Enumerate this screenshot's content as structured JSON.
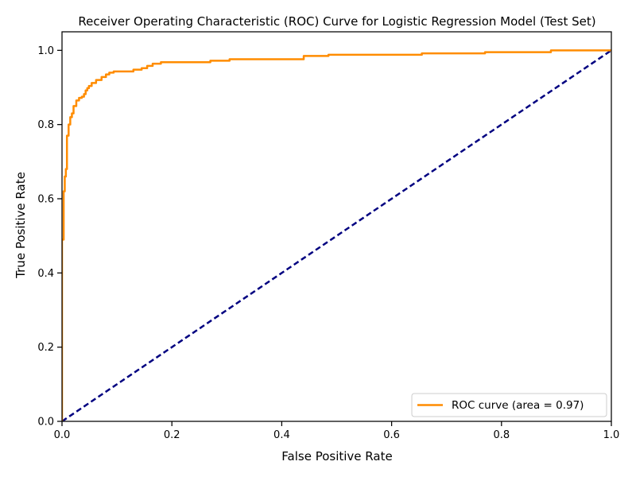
{
  "chart_data": {
    "type": "line",
    "title": "Receiver Operating Characteristic (ROC) Curve for Logistic Regression Model (Test Set)",
    "xlabel": "False Positive Rate",
    "ylabel": "True Positive Rate",
    "xlim": [
      0,
      1
    ],
    "ylim": [
      0,
      1.05
    ],
    "x_ticks": [
      0.0,
      0.2,
      0.4,
      0.6,
      0.8,
      1.0
    ],
    "x_tick_labels": [
      "0.0",
      "0.2",
      "0.4",
      "0.6",
      "0.8",
      "1.0"
    ],
    "y_ticks": [
      0.0,
      0.2,
      0.4,
      0.6,
      0.8,
      1.0
    ],
    "y_tick_labels": [
      "0.0",
      "0.2",
      "0.4",
      "0.6",
      "0.8",
      "1.0"
    ],
    "grid": false,
    "legend_position": "lower-right",
    "series": [
      {
        "name": "ROC curve (area = 0.97)",
        "color": "#ff8c00",
        "style": "solid",
        "x": [
          0.0,
          0.0,
          0.003,
          0.003,
          0.005,
          0.005,
          0.007,
          0.007,
          0.009,
          0.009,
          0.012,
          0.012,
          0.015,
          0.015,
          0.018,
          0.018,
          0.021,
          0.021,
          0.026,
          0.026,
          0.031,
          0.031,
          0.036,
          0.036,
          0.04,
          0.04,
          0.043,
          0.043,
          0.046,
          0.046,
          0.049,
          0.049,
          0.054,
          0.054,
          0.062,
          0.062,
          0.072,
          0.072,
          0.08,
          0.08,
          0.086,
          0.086,
          0.094,
          0.094,
          0.13,
          0.13,
          0.145,
          0.145,
          0.155,
          0.155,
          0.165,
          0.165,
          0.18,
          0.18,
          0.27,
          0.27,
          0.305,
          0.305,
          0.44,
          0.44,
          0.485,
          0.485,
          0.655,
          0.655,
          0.77,
          0.77,
          0.89,
          0.89,
          1.0
        ],
        "y": [
          0.0,
          0.49,
          0.49,
          0.62,
          0.62,
          0.66,
          0.66,
          0.68,
          0.68,
          0.77,
          0.77,
          0.8,
          0.8,
          0.82,
          0.82,
          0.83,
          0.83,
          0.85,
          0.85,
          0.865,
          0.865,
          0.872,
          0.872,
          0.875,
          0.875,
          0.882,
          0.882,
          0.892,
          0.892,
          0.898,
          0.898,
          0.904,
          0.904,
          0.912,
          0.912,
          0.92,
          0.92,
          0.928,
          0.928,
          0.935,
          0.935,
          0.94,
          0.94,
          0.943,
          0.943,
          0.948,
          0.948,
          0.952,
          0.952,
          0.958,
          0.958,
          0.964,
          0.964,
          0.968,
          0.968,
          0.972,
          0.972,
          0.976,
          0.976,
          0.985,
          0.985,
          0.988,
          0.988,
          0.992,
          0.992,
          0.995,
          0.995,
          1.0,
          1.0
        ]
      },
      {
        "name": "",
        "color": "#000080",
        "style": "dashed",
        "x": [
          0,
          1
        ],
        "y": [
          0,
          1
        ]
      }
    ]
  }
}
